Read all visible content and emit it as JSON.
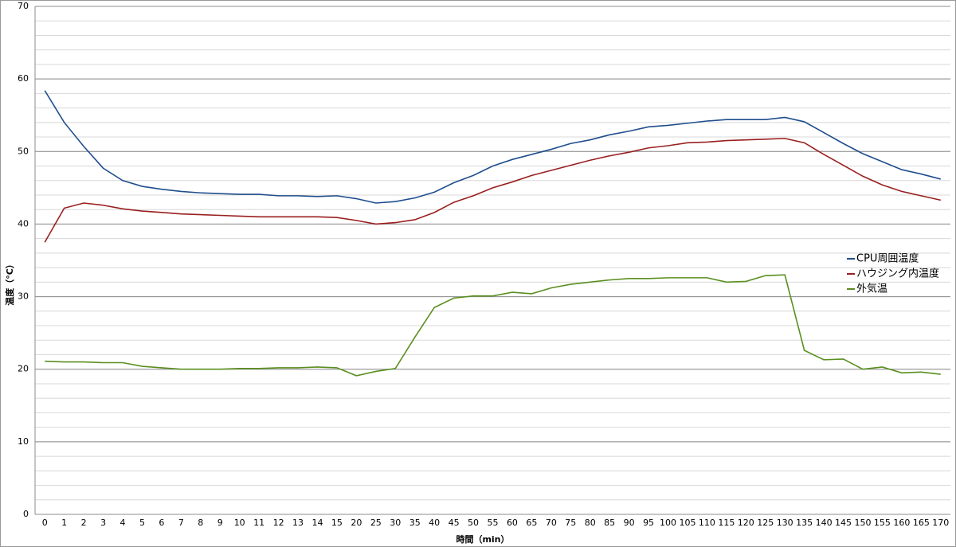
{
  "chart_data": {
    "type": "line",
    "x_label": "時間（min）",
    "y_label": "温度（°C）",
    "categories": [
      0,
      1,
      2,
      3,
      4,
      5,
      6,
      7,
      8,
      9,
      10,
      11,
      12,
      13,
      14,
      15,
      20,
      25,
      30,
      35,
      40,
      45,
      50,
      55,
      60,
      65,
      70,
      75,
      80,
      85,
      90,
      95,
      100,
      105,
      110,
      115,
      120,
      125,
      130,
      135,
      140,
      145,
      150,
      155,
      160,
      165,
      170
    ],
    "series": [
      {
        "name": "CPU周囲温度",
        "color": "#1f4e8c",
        "values": [
          58.4,
          54,
          50.7,
          47.7,
          46,
          45.2,
          44.8,
          44.5,
          44.3,
          44.2,
          44.1,
          44.1,
          43.9,
          43.9,
          43.8,
          43.9,
          43.5,
          42.9,
          43.1,
          43.6,
          44.4,
          45.7,
          46.7,
          48,
          48.9,
          49.6,
          50.3,
          51.1,
          51.6,
          52.3,
          52.8,
          53.4,
          53.6,
          53.9,
          54.2,
          54.4,
          54.4,
          54.4,
          54.7,
          54.1,
          52.6,
          51.1,
          49.7,
          48.6,
          47.5,
          46.9,
          46.2
        ]
      },
      {
        "name": "ハウジング内温度",
        "color": "#9a1f1f",
        "values": [
          37.5,
          42.2,
          42.9,
          42.6,
          42.1,
          41.8,
          41.6,
          41.4,
          41.3,
          41.2,
          41.1,
          41.0,
          41.0,
          41.0,
          41.0,
          40.9,
          40.5,
          40.0,
          40.2,
          40.6,
          41.6,
          43.0,
          43.9,
          45.0,
          45.8,
          46.7,
          47.4,
          48.1,
          48.8,
          49.4,
          49.9,
          50.5,
          50.8,
          51.2,
          51.3,
          51.5,
          51.6,
          51.7,
          51.8,
          51.2,
          49.6,
          48.1,
          46.6,
          45.4,
          44.5,
          43.9,
          43.3
        ]
      },
      {
        "name": "外気温",
        "color": "#5a8f1f",
        "values": [
          21.1,
          21.0,
          21.0,
          20.9,
          20.9,
          20.4,
          20.2,
          20.0,
          20.0,
          20.0,
          20.1,
          20.1,
          20.2,
          20.2,
          20.3,
          20.2,
          19.1,
          19.7,
          20.1,
          24.4,
          28.5,
          29.8,
          30.1,
          30.1,
          30.6,
          30.4,
          31.2,
          31.7,
          32.0,
          32.3,
          32.5,
          32.5,
          32.6,
          32.6,
          32.6,
          32.0,
          32.1,
          32.9,
          33.0,
          22.6,
          21.3,
          21.4,
          20.0,
          20.3,
          19.5,
          19.6,
          19.3
        ]
      }
    ],
    "ylim": [
      0,
      70
    ],
    "yticks": [
      0,
      10,
      20,
      30,
      40,
      50,
      60,
      70
    ],
    "grid": true,
    "minor_grid": 2,
    "legend": "right"
  }
}
